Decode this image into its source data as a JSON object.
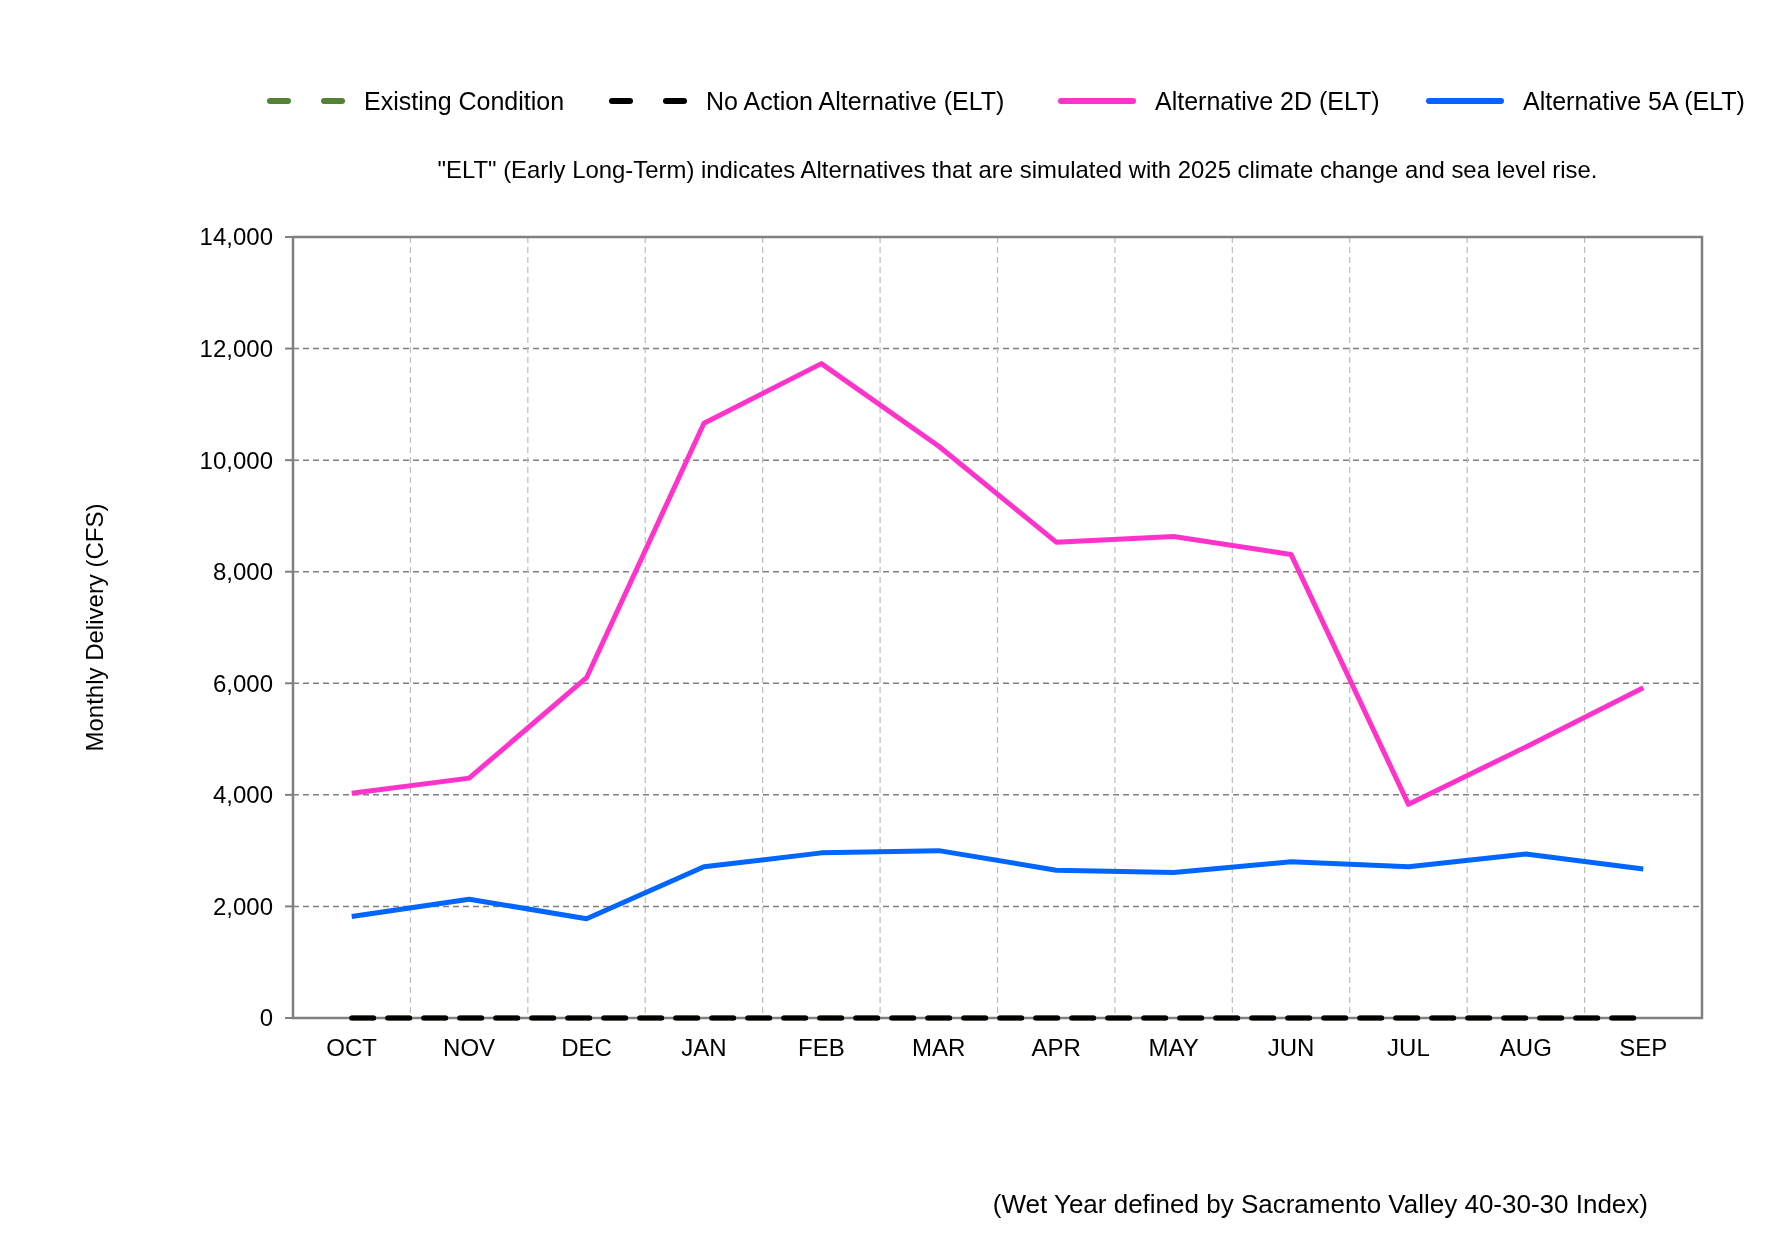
{
  "chart_data": {
    "type": "line",
    "subtitle": "\"ELT\" (Early Long-Term) indicates Alternatives that are simulated with 2025 climate change and sea level rise.",
    "ylabel": "Monthly Delivery (CFS)",
    "annotations": [
      "(Wet Year defined by Sacramento Valley 40-30-30 Index)"
    ],
    "categories": [
      "OCT",
      "NOV",
      "DEC",
      "JAN",
      "FEB",
      "MAR",
      "APR",
      "MAY",
      "JUN",
      "JUL",
      "AUG",
      "SEP"
    ],
    "series": [
      {
        "name": "Existing Condition",
        "color": "#548235",
        "line_style": "dashed",
        "values": [
          0,
          0,
          0,
          0,
          0,
          0,
          0,
          0,
          0,
          0,
          0,
          0
        ]
      },
      {
        "name": "No Action Alternative (ELT)",
        "color": "#000000",
        "line_style": "dashed",
        "values": [
          0,
          0,
          0,
          0,
          0,
          0,
          0,
          0,
          0,
          0,
          0,
          0
        ]
      },
      {
        "name": "Alternative 2D (ELT)",
        "color": "#ff33cc",
        "line_style": "solid",
        "values": [
          4030,
          4300,
          6100,
          10660,
          11730,
          10250,
          8530,
          8630,
          8310,
          3830,
          4860,
          5920
        ]
      },
      {
        "name": "Alternative 5A (ELT)",
        "color": "#0066ff",
        "line_style": "solid",
        "values": [
          1820,
          2130,
          1780,
          2710,
          2960,
          3000,
          2650,
          2610,
          2800,
          2710,
          2940,
          2670
        ]
      }
    ],
    "ylim": [
      0,
      14000
    ],
    "yticks": [
      {
        "value": 0,
        "label": "0"
      },
      {
        "value": 2000,
        "label": "2,000"
      },
      {
        "value": 4000,
        "label": "4,000"
      },
      {
        "value": 6000,
        "label": "6,000"
      },
      {
        "value": 8000,
        "label": "8,000"
      },
      {
        "value": 10000,
        "label": "10,000"
      },
      {
        "value": 12000,
        "label": "12,000"
      },
      {
        "value": 14000,
        "label": "14,000"
      }
    ],
    "grid": true,
    "legend": "top"
  }
}
